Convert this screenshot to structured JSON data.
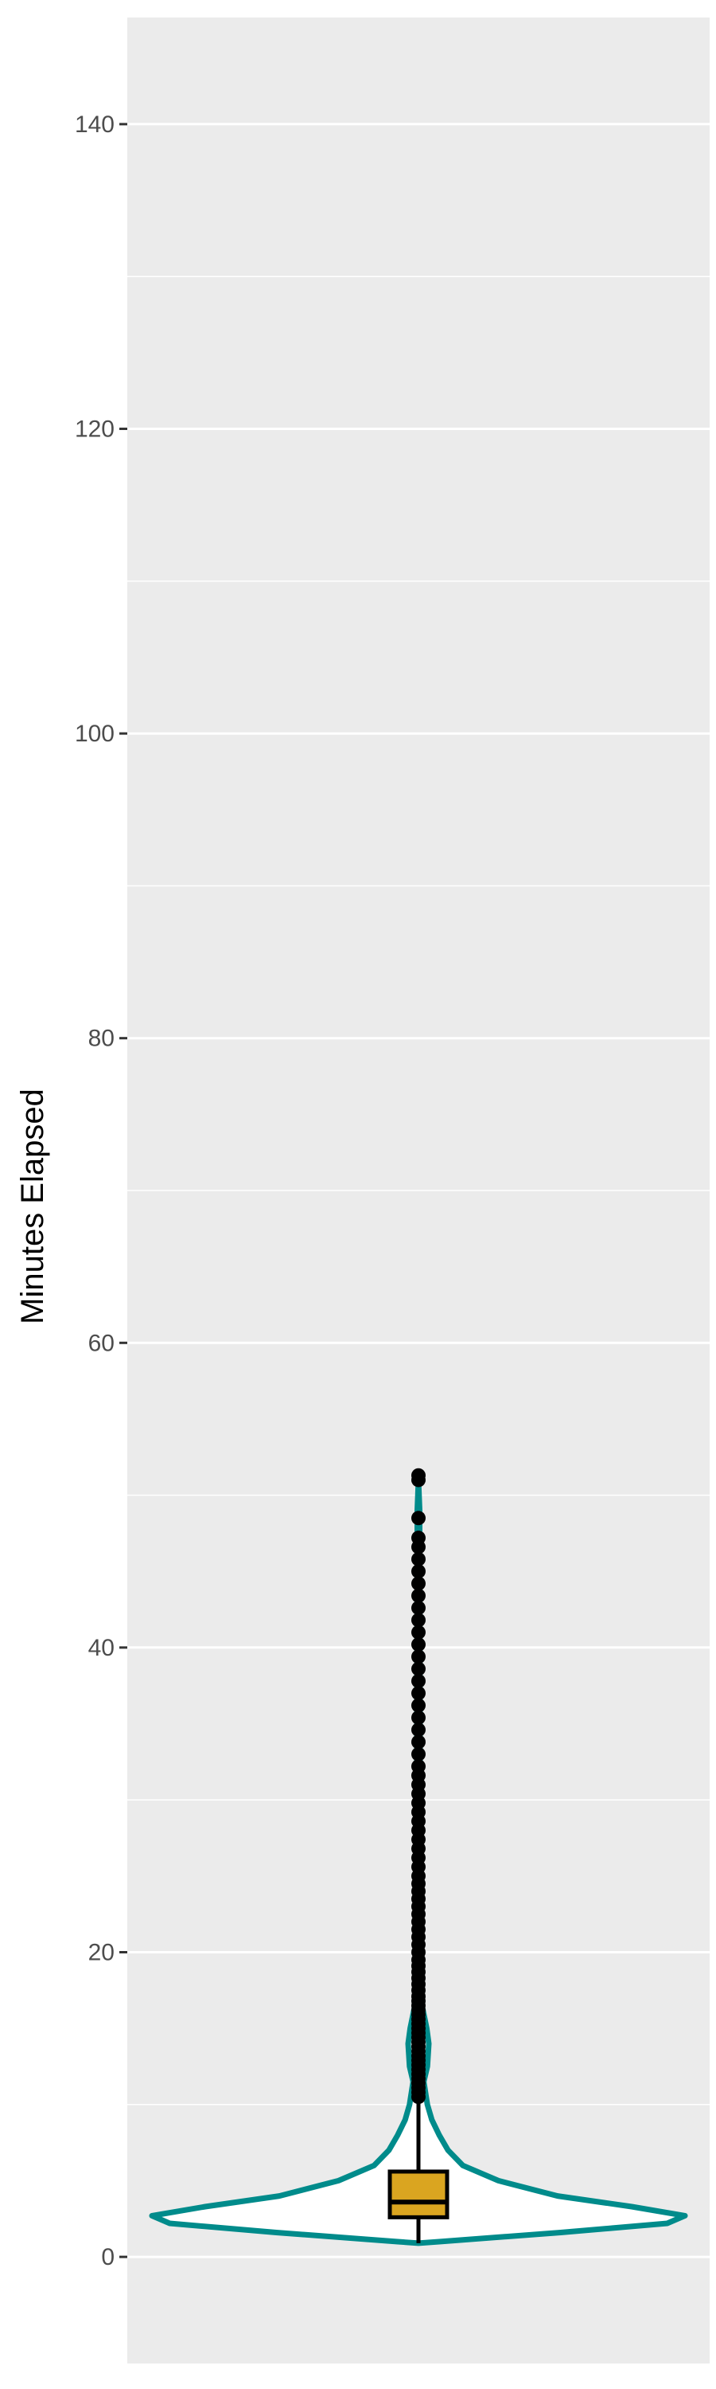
{
  "chart_data": {
    "type": "violin",
    "ylabel": "Minutes Elapsed",
    "xlabel": "",
    "title": "",
    "ylim": [
      -7,
      147
    ],
    "y_ticks": [
      0,
      20,
      40,
      60,
      80,
      100,
      120,
      140
    ],
    "y_tick_labels": [
      "0",
      "20",
      "40",
      "60",
      "80",
      "100",
      "120",
      "140"
    ],
    "grid": true,
    "colors": {
      "panel_background": "#EBEBEB",
      "grid": "#FFFFFF",
      "violin_outline": "#008B8B",
      "violin_fill": "#FFFFFF",
      "box_fill": "#DAA520",
      "box_outline": "#000000",
      "outlier": "#000000"
    },
    "violin": {
      "density_profile": [
        {
          "y": 0.9,
          "half_width": 0.0
        },
        {
          "y": 1.0,
          "half_width": 0.07
        },
        {
          "y": 1.6,
          "half_width": 0.48
        },
        {
          "y": 2.2,
          "half_width": 0.84
        },
        {
          "y": 2.7,
          "half_width": 0.9
        },
        {
          "y": 3.3,
          "half_width": 0.72
        },
        {
          "y": 4.0,
          "half_width": 0.47
        },
        {
          "y": 5.0,
          "half_width": 0.27
        },
        {
          "y": 6.0,
          "half_width": 0.15
        },
        {
          "y": 7.0,
          "half_width": 0.1
        },
        {
          "y": 8.0,
          "half_width": 0.07
        },
        {
          "y": 9.0,
          "half_width": 0.045
        },
        {
          "y": 10.0,
          "half_width": 0.03
        },
        {
          "y": 11.5,
          "half_width": 0.018
        },
        {
          "y": 12.5,
          "half_width": 0.03
        },
        {
          "y": 14.0,
          "half_width": 0.035
        },
        {
          "y": 15.0,
          "half_width": 0.028
        },
        {
          "y": 16.5,
          "half_width": 0.012
        },
        {
          "y": 19.0,
          "half_width": 0.008
        },
        {
          "y": 25.0,
          "half_width": 0.006
        },
        {
          "y": 35.0,
          "half_width": 0.005
        },
        {
          "y": 45.0,
          "half_width": 0.004
        },
        {
          "y": 49.0,
          "half_width": 0.004
        },
        {
          "y": 51.0,
          "half_width": 0.0
        }
      ]
    },
    "box": {
      "whisker_low": 0.9,
      "q1": 2.6,
      "median": 3.6,
      "q3": 5.6,
      "whisker_high": 10.2
    },
    "outliers": [
      10.5,
      10.8,
      11.1,
      11.4,
      11.7,
      12.0,
      12.3,
      12.6,
      12.9,
      13.2,
      13.5,
      13.8,
      14.1,
      14.4,
      14.7,
      15.0,
      15.3,
      15.6,
      15.9,
      16.2,
      16.5,
      16.8,
      17.1,
      17.5,
      17.9,
      18.3,
      18.7,
      19.1,
      19.5,
      20.0,
      20.5,
      21.0,
      21.5,
      22.0,
      22.5,
      23.0,
      23.5,
      24.0,
      24.5,
      25.0,
      25.6,
      26.2,
      26.8,
      27.4,
      28.0,
      28.6,
      29.2,
      29.8,
      30.4,
      31.0,
      31.6,
      32.2,
      33.0,
      33.8,
      34.6,
      35.4,
      36.2,
      37.0,
      37.8,
      38.6,
      39.4,
      40.2,
      41.0,
      41.8,
      42.6,
      43.4,
      44.2,
      45.0,
      45.8,
      46.6,
      47.2,
      48.5,
      51.0,
      51.3
    ]
  }
}
